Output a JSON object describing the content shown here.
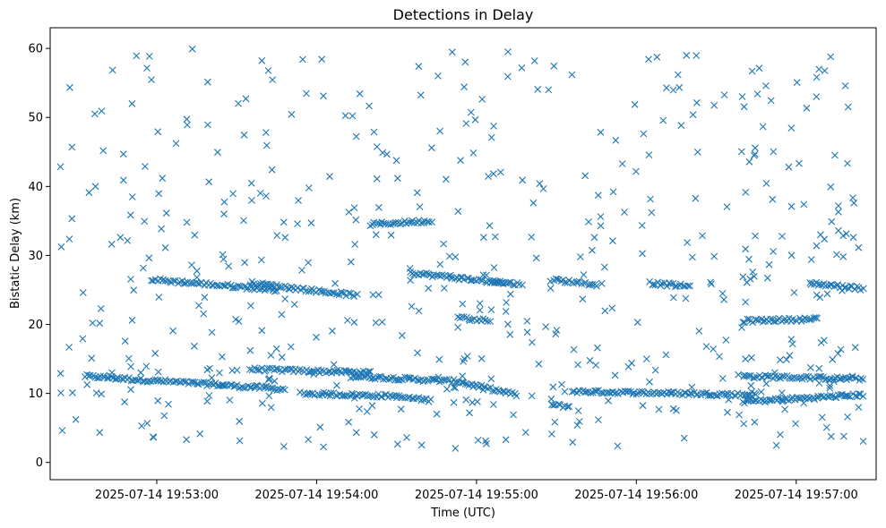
{
  "chart_data": {
    "type": "scatter",
    "title": "Detections in Delay",
    "xlabel": "Time (UTC)",
    "ylabel": "Bistatic Delay (km)",
    "marker": "x",
    "color": "#1f77b4",
    "xlim": [
      "2025-07-14 19:52:20",
      "2025-07-14 19:57:30"
    ],
    "ylim": [
      -2.5,
      63
    ],
    "x_tick_labels": [
      "2025-07-14 19:53:00",
      "2025-07-14 19:54:00",
      "2025-07-14 19:55:00",
      "2025-07-14 19:56:00",
      "2025-07-14 19:57:00"
    ],
    "y_tick_labels": [
      "0",
      "10",
      "20",
      "30",
      "40",
      "50",
      "60"
    ],
    "y_ticks": [
      0,
      10,
      20,
      30,
      40,
      50,
      60
    ],
    "x_range": [
      "2025-07-14 19:52:23",
      "2025-07-14 19:57:26"
    ],
    "point_count": 1400,
    "tracks": [
      {
        "x_start": "2025-07-14 19:52:33",
        "x_end": "2025-07-14 19:53:25",
        "y_start": 12.5,
        "y_end": 11.2
      },
      {
        "x_start": "2025-07-14 19:53:25",
        "x_end": "2025-07-14 19:53:48",
        "y_start": 11.2,
        "y_end": 10.6
      },
      {
        "x_start": "2025-07-14 19:53:35",
        "x_end": "2025-07-14 19:54:20",
        "y_start": 13.5,
        "y_end": 13.0
      },
      {
        "x_start": "2025-07-14 19:53:55",
        "x_end": "2025-07-14 19:54:30",
        "y_start": 10.0,
        "y_end": 9.6
      },
      {
        "x_start": "2025-07-14 19:54:30",
        "x_end": "2025-07-14 19:54:43",
        "y_start": 9.5,
        "y_end": 9.0
      },
      {
        "x_start": "2025-07-14 19:54:13",
        "x_end": "2025-07-14 19:54:55",
        "y_start": 12.5,
        "y_end": 11.7
      },
      {
        "x_start": "2025-07-14 19:54:55",
        "x_end": "2025-07-14 19:55:15",
        "y_start": 11.5,
        "y_end": 9.8
      },
      {
        "x_start": "2025-07-14 19:55:28",
        "x_end": "2025-07-14 19:55:35",
        "y_start": 8.3,
        "y_end": 8.1
      },
      {
        "x_start": "2025-07-14 19:55:36",
        "x_end": "2025-07-14 19:56:45",
        "y_start": 10.3,
        "y_end": 9.8
      },
      {
        "x_start": "2025-07-14 19:56:40",
        "x_end": "2025-07-14 19:57:25",
        "y_start": 12.5,
        "y_end": 12.1
      },
      {
        "x_start": "2025-07-14 19:56:40",
        "x_end": "2025-07-14 19:57:25",
        "y_start": 8.8,
        "y_end": 9.8
      },
      {
        "x_start": "2025-07-14 19:52:58",
        "x_end": "2025-07-14 19:53:45",
        "y_start": 26.5,
        "y_end": 25.0
      },
      {
        "x_start": "2025-07-14 19:53:35",
        "x_end": "2025-07-14 19:54:15",
        "y_start": 26.0,
        "y_end": 24.2
      },
      {
        "x_start": "2025-07-14 19:54:20",
        "x_end": "2025-07-14 19:54:43",
        "y_start": 34.5,
        "y_end": 35.0
      },
      {
        "x_start": "2025-07-14 19:54:35",
        "x_end": "2025-07-14 19:55:10",
        "y_start": 27.5,
        "y_end": 26.0
      },
      {
        "x_start": "2025-07-14 19:54:53",
        "x_end": "2025-07-14 19:55:05",
        "y_start": 21.0,
        "y_end": 20.5
      },
      {
        "x_start": "2025-07-14 19:55:05",
        "x_end": "2025-07-14 19:55:17",
        "y_start": 26.3,
        "y_end": 25.8
      },
      {
        "x_start": "2025-07-14 19:55:28",
        "x_end": "2025-07-14 19:55:45",
        "y_start": 26.5,
        "y_end": 25.8
      },
      {
        "x_start": "2025-07-14 19:56:05",
        "x_end": "2025-07-14 19:56:20",
        "y_start": 26.0,
        "y_end": 25.5
      },
      {
        "x_start": "2025-07-14 19:56:40",
        "x_end": "2025-07-14 19:57:08",
        "y_start": 20.5,
        "y_end": 20.8
      },
      {
        "x_start": "2025-07-14 19:57:05",
        "x_end": "2025-07-14 19:57:25",
        "y_start": 26.0,
        "y_end": 25.2
      }
    ]
  }
}
